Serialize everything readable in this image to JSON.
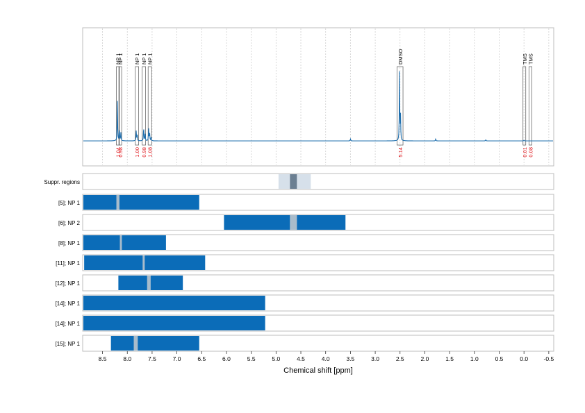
{
  "colors": {
    "spectrum": "#1f6fae",
    "bar": "#0b6cb8",
    "integral": "#e0191e",
    "frame": "#bdbdbd",
    "grid": "#cfcfcf",
    "suppr_light": "#d6e0ea",
    "suppr_dark": "#6b7f92",
    "gap": "#a9bccb"
  },
  "chart_data": {
    "type": "line",
    "xlabel": "Chemical shift [ppm]",
    "xlim": [
      8.9,
      -0.6
    ],
    "x_reversed": true,
    "x_ticks": [
      8.5,
      8.0,
      7.5,
      7.0,
      6.5,
      6.0,
      5.5,
      5.0,
      4.5,
      4.0,
      3.5,
      3.0,
      2.5,
      2.0,
      1.5,
      1.0,
      0.5,
      0.0,
      -0.5
    ],
    "x_tick_labels": [
      "8.5",
      "8.0",
      "7.5",
      "7.0",
      "6.5",
      "6.0",
      "5.5",
      "5.0",
      "4.5",
      "4.0",
      "3.5",
      "3.0",
      "2.5",
      "2.0",
      "1.5",
      "1.0",
      "0.5",
      "0.0",
      "-0.5"
    ],
    "grid": true,
    "spectrum": {
      "baseline": 0,
      "peaks": [
        {
          "x": 8.2,
          "y": 0.58
        },
        {
          "x": 8.16,
          "y": 0.18
        },
        {
          "x": 8.13,
          "y": 0.12
        },
        {
          "x": 7.82,
          "y": 0.15
        },
        {
          "x": 7.8,
          "y": 0.08
        },
        {
          "x": 7.67,
          "y": 0.22
        },
        {
          "x": 7.64,
          "y": 0.1
        },
        {
          "x": 7.57,
          "y": 0.18
        },
        {
          "x": 7.55,
          "y": 0.12
        },
        {
          "x": 7.52,
          "y": 0.05
        },
        {
          "x": 2.51,
          "y": 1.0
        },
        {
          "x": 2.49,
          "y": 0.35
        },
        {
          "x": 3.5,
          "y": 0.03
        },
        {
          "x": 1.78,
          "y": 0.03
        },
        {
          "x": 0.77,
          "y": 0.02
        },
        {
          "x": 0.0,
          "y": 0.01
        }
      ]
    },
    "annotations": [
      {
        "label": "NP 1",
        "x1": 8.22,
        "x2": 8.16,
        "integral": "1.04"
      },
      {
        "label": "NP 1",
        "x1": 8.17,
        "x2": 8.12,
        "integral": "0.98"
      },
      {
        "label": "NP 1",
        "x1": 7.84,
        "x2": 7.77,
        "integral": "1.00"
      },
      {
        "label": "NP 1",
        "x1": 7.7,
        "x2": 7.63,
        "integral": "0.98"
      },
      {
        "label": "NP 1",
        "x1": 7.58,
        "x2": 7.51,
        "integral": "1.08"
      },
      {
        "label": "DMSO",
        "x1": 2.56,
        "x2": 2.44,
        "integral": "5.14"
      },
      {
        "label": "TMS",
        "x1": 0.02,
        "x2": -0.02,
        "integral": "0.01"
      },
      {
        "label": "TMS",
        "x1": -0.1,
        "x2": -0.16,
        "integral": "0.08"
      }
    ],
    "suppr_regions": {
      "label": "Suppr. regions",
      "outer": [
        4.95,
        4.3
      ],
      "inner": [
        4.72,
        4.58
      ]
    },
    "rows": [
      {
        "label": "[5]; NP 1",
        "ranges": [
          [
            8.9,
            8.22
          ],
          [
            8.16,
            6.55
          ]
        ]
      },
      {
        "label": "[6]; NP 2",
        "ranges": [
          [
            6.05,
            4.72
          ],
          [
            4.58,
            3.6
          ]
        ]
      },
      {
        "label": "[8]; NP 1",
        "ranges": [
          [
            8.9,
            8.15
          ],
          [
            8.11,
            7.22
          ]
        ]
      },
      {
        "label": "[11]; NP 1",
        "ranges": [
          [
            8.87,
            7.69
          ],
          [
            7.65,
            6.43
          ]
        ]
      },
      {
        "label": "[12]; NP 1",
        "ranges": [
          [
            8.18,
            7.6
          ],
          [
            7.53,
            6.88
          ]
        ]
      },
      {
        "label": "[14]; NP 1",
        "ranges": [
          [
            8.9,
            5.22
          ]
        ]
      },
      {
        "label": "[14]; NP 1",
        "ranges": [
          [
            8.9,
            5.22
          ]
        ]
      },
      {
        "label": "[15]; NP 1",
        "ranges": [
          [
            8.33,
            7.87
          ],
          [
            7.79,
            6.55
          ]
        ]
      }
    ]
  }
}
